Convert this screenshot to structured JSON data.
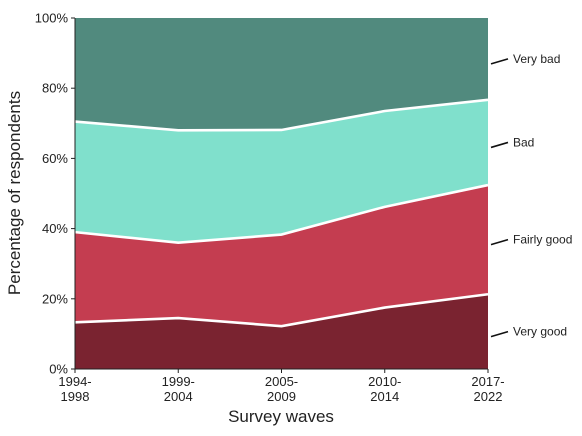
{
  "chart_data": {
    "type": "area",
    "stacked": true,
    "normalized": true,
    "xlabel": "Survey waves",
    "ylabel": "Percentage of respondents",
    "categories": [
      [
        "1994-",
        "1998"
      ],
      [
        "1999-",
        "2004"
      ],
      [
        "2005-",
        "2009"
      ],
      [
        "2010-",
        "2014"
      ],
      [
        "2017-",
        "2022"
      ]
    ],
    "y_ticks": [
      "0%",
      "20%",
      "40%",
      "60%",
      "80%",
      "100%"
    ],
    "ylim": [
      0,
      100
    ],
    "grid": false,
    "legend_placement": "right, inline labels",
    "series": [
      {
        "name": "Very good",
        "color": "#7a2330",
        "values": [
          13.3,
          14.5,
          12.2,
          17.5,
          21.3
        ]
      },
      {
        "name": "Fairly good",
        "color": "#c43d50",
        "values": [
          25.7,
          21.5,
          26.1,
          28.7,
          31.1
        ]
      },
      {
        "name": "Bad",
        "color": "#80e0cc",
        "values": [
          31.5,
          32.0,
          29.8,
          27.3,
          24.3
        ]
      },
      {
        "name": "Very bad",
        "color": "#518a7e",
        "values": [
          29.5,
          32.0,
          31.9,
          26.5,
          23.3
        ]
      }
    ]
  }
}
